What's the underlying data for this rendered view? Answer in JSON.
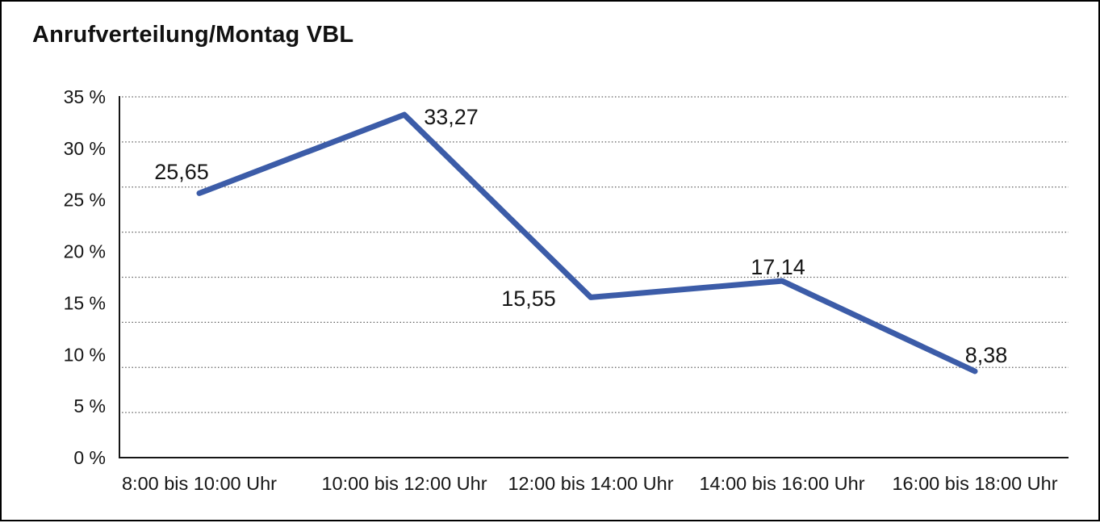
{
  "frame": {
    "border_color": "#000000",
    "background_color": "#ffffff"
  },
  "chart_data": {
    "type": "line",
    "title": "Anrufverteilung/Montag VBL",
    "categories": [
      "8:00 bis 10:00 Uhr",
      "10:00 bis 12:00 Uhr",
      "12:00 bis 14:00 Uhr",
      "14:00 bis 16:00 Uhr",
      "16:00 bis 18:00 Uhr"
    ],
    "values": [
      25.65,
      33.27,
      15.55,
      17.14,
      8.38
    ],
    "point_labels": [
      "25,65",
      "33,27",
      "15,55",
      "17,14",
      "8,38"
    ],
    "y_ticks": [
      {
        "value": 0,
        "label": "0 %"
      },
      {
        "value": 5,
        "label": "5 %"
      },
      {
        "value": 10,
        "label": "10 %"
      },
      {
        "value": 15,
        "label": "15 %"
      },
      {
        "value": 20,
        "label": "20 %"
      },
      {
        "value": 25,
        "label": "25 %"
      },
      {
        "value": 30,
        "label": "30 %"
      },
      {
        "value": 35,
        "label": "35 %"
      }
    ],
    "ylim": [
      0,
      35
    ],
    "xlabel": "",
    "ylabel": "",
    "legend": "none",
    "grid": "horizontal-dotted",
    "colors": {
      "line": "#3c5ca8",
      "text": "#161616",
      "axis": "#161616",
      "gridline": "#5f5f5f"
    }
  }
}
